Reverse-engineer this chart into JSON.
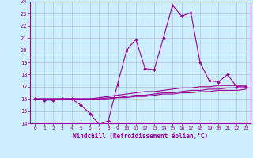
{
  "title": "",
  "xlabel": "Windchill (Refroidissement éolien,°C)",
  "ylabel": "",
  "x": [
    0,
    1,
    2,
    3,
    4,
    5,
    6,
    7,
    8,
    9,
    10,
    11,
    12,
    13,
    14,
    15,
    16,
    17,
    18,
    19,
    20,
    21,
    22,
    23
  ],
  "line1": [
    16.0,
    15.9,
    15.9,
    16.0,
    16.0,
    15.5,
    14.8,
    13.9,
    14.2,
    17.2,
    20.0,
    20.9,
    18.5,
    18.4,
    21.0,
    23.7,
    22.8,
    23.1,
    19.0,
    17.5,
    17.4,
    18.0,
    17.0,
    17.0
  ],
  "line2": [
    16.0,
    16.0,
    16.0,
    16.0,
    16.0,
    16.0,
    16.0,
    16.1,
    16.2,
    16.3,
    16.4,
    16.5,
    16.6,
    16.6,
    16.7,
    16.8,
    16.9,
    16.9,
    17.0,
    17.0,
    17.1,
    17.1,
    17.1,
    17.1
  ],
  "line3": [
    16.0,
    16.0,
    16.0,
    16.0,
    16.0,
    16.0,
    16.0,
    16.0,
    16.1,
    16.1,
    16.2,
    16.3,
    16.3,
    16.4,
    16.5,
    16.5,
    16.6,
    16.7,
    16.7,
    16.8,
    16.8,
    16.9,
    16.9,
    16.9
  ],
  "line4": [
    16.0,
    16.0,
    16.0,
    16.0,
    16.0,
    16.0,
    16.0,
    16.0,
    16.0,
    16.1,
    16.1,
    16.2,
    16.2,
    16.3,
    16.4,
    16.4,
    16.5,
    16.5,
    16.6,
    16.6,
    16.7,
    16.7,
    16.7,
    16.8
  ],
  "line_color": "#990099",
  "bg_color": "#cceeff",
  "grid_color": "#b0b8cc",
  "ylim": [
    14,
    24
  ],
  "xlim": [
    -0.5,
    23.5
  ],
  "yticks": [
    14,
    15,
    16,
    17,
    18,
    19,
    20,
    21,
    22,
    23,
    24
  ],
  "xticks": [
    0,
    1,
    2,
    3,
    4,
    5,
    6,
    7,
    8,
    9,
    10,
    11,
    12,
    13,
    14,
    15,
    16,
    17,
    18,
    19,
    20,
    21,
    22,
    23
  ]
}
